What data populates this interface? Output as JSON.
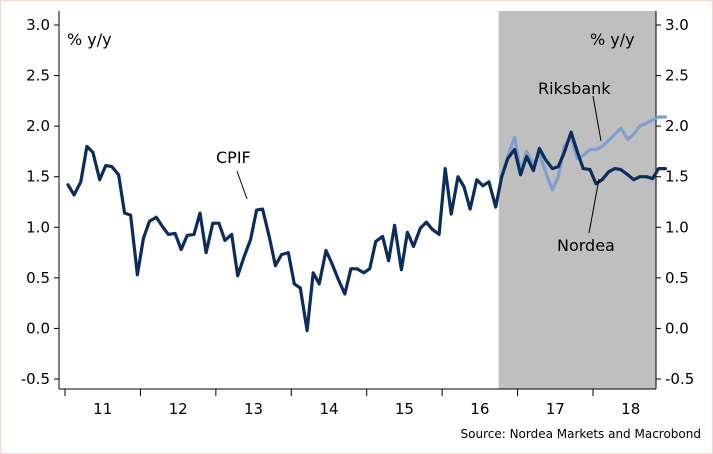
{
  "chart_data": {
    "type": "line",
    "y_unit_left": "% y/y",
    "y_unit_right": "% y/y",
    "ylim": [
      -0.6,
      3.1
    ],
    "y_ticks": [
      3.0,
      2.5,
      2.0,
      1.5,
      1.0,
      0.5,
      0.0,
      -0.5
    ],
    "y_tick_labels": [
      "3.0",
      "2.5",
      "2.0",
      "1.5",
      "1.0",
      "0.5",
      "0.0",
      "-0.5"
    ],
    "x_range": [
      2011.0,
      2019.0
    ],
    "x_tick_labels": [
      {
        "label": "11",
        "x": 2011.5
      },
      {
        "label": "12",
        "x": 2012.5
      },
      {
        "label": "13",
        "x": 2013.5
      },
      {
        "label": "14",
        "x": 2014.5
      },
      {
        "label": "15",
        "x": 2015.5
      },
      {
        "label": "16",
        "x": 2016.5
      },
      {
        "label": "17",
        "x": 2017.5
      },
      {
        "label": "18",
        "x": 2018.5
      }
    ],
    "forecast_start": 2016.75,
    "forecast_end": 2019.0,
    "series": [
      {
        "name": "CPIF",
        "color": "#0b2d5c",
        "x": [
          2011.04,
          2011.12,
          2011.21,
          2011.29,
          2011.37,
          2011.46,
          2011.54,
          2011.62,
          2011.71,
          2011.79,
          2011.87,
          2011.96,
          2012.04,
          2012.12,
          2012.21,
          2012.29,
          2012.37,
          2012.46,
          2012.54,
          2012.62,
          2012.71,
          2012.79,
          2012.87,
          2012.96,
          2013.04,
          2013.12,
          2013.21,
          2013.29,
          2013.37,
          2013.46,
          2013.54,
          2013.62,
          2013.71,
          2013.79,
          2013.87,
          2013.96,
          2014.04,
          2014.12,
          2014.21,
          2014.29,
          2014.37,
          2014.46,
          2014.54,
          2014.62,
          2014.71,
          2014.79,
          2014.87,
          2014.96,
          2015.04,
          2015.12,
          2015.21,
          2015.29,
          2015.37,
          2015.46,
          2015.54,
          2015.62,
          2015.71,
          2015.79,
          2015.87,
          2015.96,
          2016.04,
          2016.12,
          2016.21,
          2016.29,
          2016.37,
          2016.46,
          2016.54,
          2016.62,
          2016.71,
          2016.79
        ],
        "values": [
          1.42,
          1.32,
          1.45,
          1.8,
          1.74,
          1.47,
          1.61,
          1.6,
          1.52,
          1.14,
          1.12,
          0.53,
          0.89,
          1.06,
          1.1,
          1.01,
          0.93,
          0.94,
          0.78,
          0.92,
          0.93,
          1.14,
          0.75,
          1.04,
          1.04,
          0.87,
          0.93,
          0.52,
          0.7,
          0.88,
          1.17,
          1.18,
          0.9,
          0.62,
          0.73,
          0.75,
          0.44,
          0.4,
          -0.02,
          0.55,
          0.44,
          0.77,
          0.64,
          0.49,
          0.34,
          0.59,
          0.59,
          0.55,
          0.59,
          0.86,
          0.91,
          0.67,
          1.02,
          0.58,
          0.95,
          0.81,
          0.99,
          1.05,
          0.98,
          0.93,
          1.58,
          1.13,
          1.5,
          1.4,
          1.18,
          1.47,
          1.41,
          1.45,
          1.2,
          1.5
        ]
      },
      {
        "name": "Riksbank",
        "color": "#7f9fce",
        "x": [
          2016.79,
          2016.87,
          2016.96,
          2017.04,
          2017.12,
          2017.21,
          2017.29,
          2017.37,
          2017.46,
          2017.54,
          2017.62,
          2017.71,
          2017.79,
          2017.87,
          2017.96,
          2018.04,
          2018.12,
          2018.21,
          2018.29,
          2018.37,
          2018.46,
          2018.54,
          2018.62,
          2018.71,
          2018.79,
          2018.87,
          2018.96
        ],
        "values": [
          1.5,
          1.7,
          1.89,
          1.55,
          1.75,
          1.62,
          1.73,
          1.55,
          1.37,
          1.5,
          1.8,
          1.9,
          1.68,
          1.71,
          1.77,
          1.77,
          1.8,
          1.86,
          1.92,
          1.98,
          1.87,
          1.92,
          2.0,
          2.03,
          2.06,
          2.09,
          2.09
        ]
      },
      {
        "name": "Nordea",
        "color": "#0b2d5c",
        "x": [
          2016.79,
          2016.87,
          2016.96,
          2017.04,
          2017.12,
          2017.21,
          2017.29,
          2017.37,
          2017.46,
          2017.54,
          2017.62,
          2017.71,
          2017.79,
          2017.87,
          2017.96,
          2018.04,
          2018.12,
          2018.21,
          2018.29,
          2018.37,
          2018.46,
          2018.54,
          2018.62,
          2018.71,
          2018.79,
          2018.87,
          2018.96
        ],
        "values": [
          1.5,
          1.68,
          1.77,
          1.52,
          1.7,
          1.56,
          1.78,
          1.67,
          1.58,
          1.6,
          1.74,
          1.94,
          1.75,
          1.58,
          1.57,
          1.43,
          1.47,
          1.55,
          1.58,
          1.57,
          1.52,
          1.47,
          1.5,
          1.5,
          1.48,
          1.58,
          1.58
        ]
      }
    ],
    "annotations": [
      {
        "text": "CPIF",
        "series": "CPIF"
      },
      {
        "text": "Riksbank",
        "series": "Riksbank"
      },
      {
        "text": "Nordea",
        "series": "Nordea"
      }
    ],
    "source": "Source: Nordea Markets and Macrobond"
  }
}
